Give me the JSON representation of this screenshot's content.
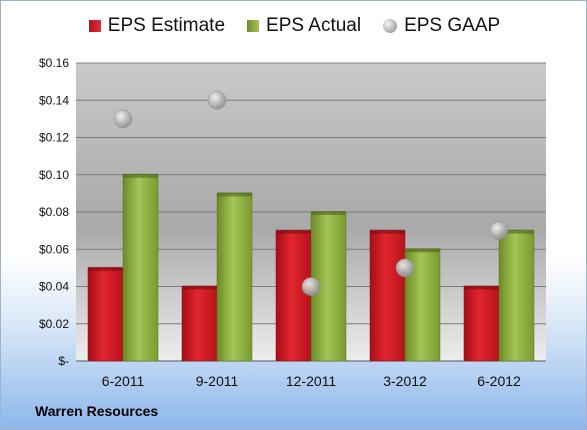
{
  "chart_data": {
    "type": "bar",
    "categories": [
      "6-2011",
      "9-2011",
      "12-2011",
      "3-2012",
      "6-2012"
    ],
    "series": [
      {
        "name": "EPS Estimate",
        "kind": "bar",
        "color": "#c8141e",
        "values": [
          0.05,
          0.04,
          0.07,
          0.07,
          0.04
        ]
      },
      {
        "name": "EPS Actual",
        "kind": "bar",
        "color": "#8aab3f",
        "values": [
          0.1,
          0.09,
          0.08,
          0.06,
          0.07
        ]
      },
      {
        "name": "EPS GAAP",
        "kind": "scatter",
        "color": "#b4b4b4",
        "values": [
          0.13,
          0.14,
          0.04,
          0.05,
          0.07
        ]
      }
    ],
    "ylim": [
      0,
      0.16
    ],
    "y_ticks": [
      {
        "value": 0,
        "label": "$-"
      },
      {
        "value": 0.02,
        "label": "$0.02"
      },
      {
        "value": 0.04,
        "label": "$0.04"
      },
      {
        "value": 0.06,
        "label": "$0.06"
      },
      {
        "value": 0.08,
        "label": "$0.08"
      },
      {
        "value": 0.1,
        "label": "$0.10"
      },
      {
        "value": 0.12,
        "label": "$0.12"
      },
      {
        "value": 0.14,
        "label": "$0.14"
      },
      {
        "value": 0.16,
        "label": "$0.16"
      }
    ],
    "grid": true,
    "legend": "top"
  },
  "legend": {
    "estimate": "EPS Estimate",
    "actual": "EPS Actual",
    "gaap": "EPS GAAP"
  },
  "company": "Warren Resources"
}
